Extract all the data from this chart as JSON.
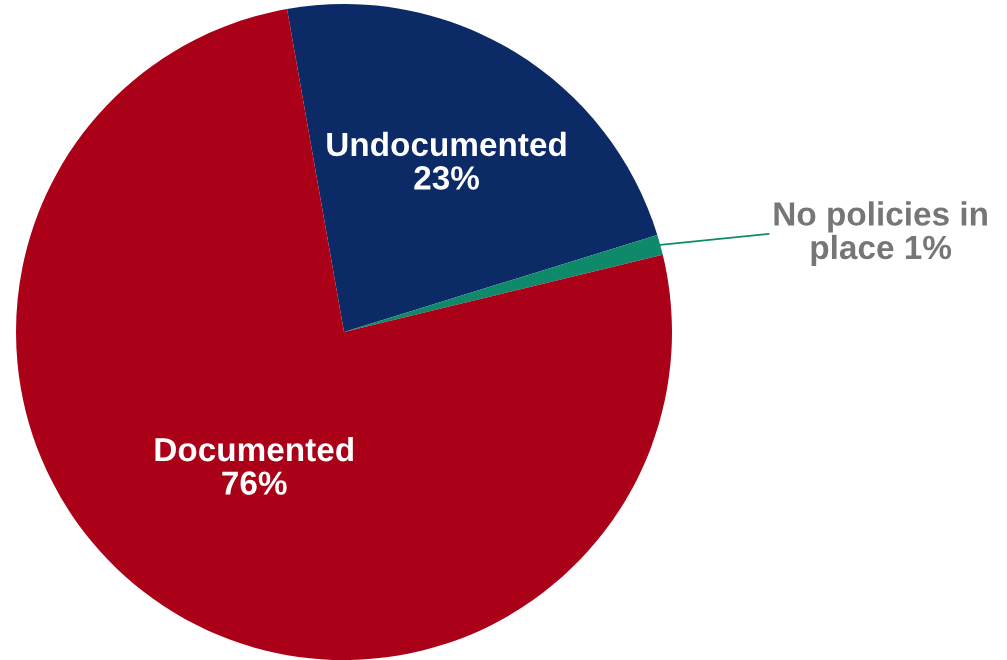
{
  "chart_data": {
    "type": "pie",
    "categories": [
      "Undocumented",
      "No policies in place",
      "Documented"
    ],
    "values": [
      23,
      1,
      76
    ],
    "value_labels": [
      "23%",
      "1%",
      "76%"
    ],
    "colors": [
      "#0c2a66",
      "#0e8a6a",
      "#aa0018"
    ],
    "legend": false
  }
}
